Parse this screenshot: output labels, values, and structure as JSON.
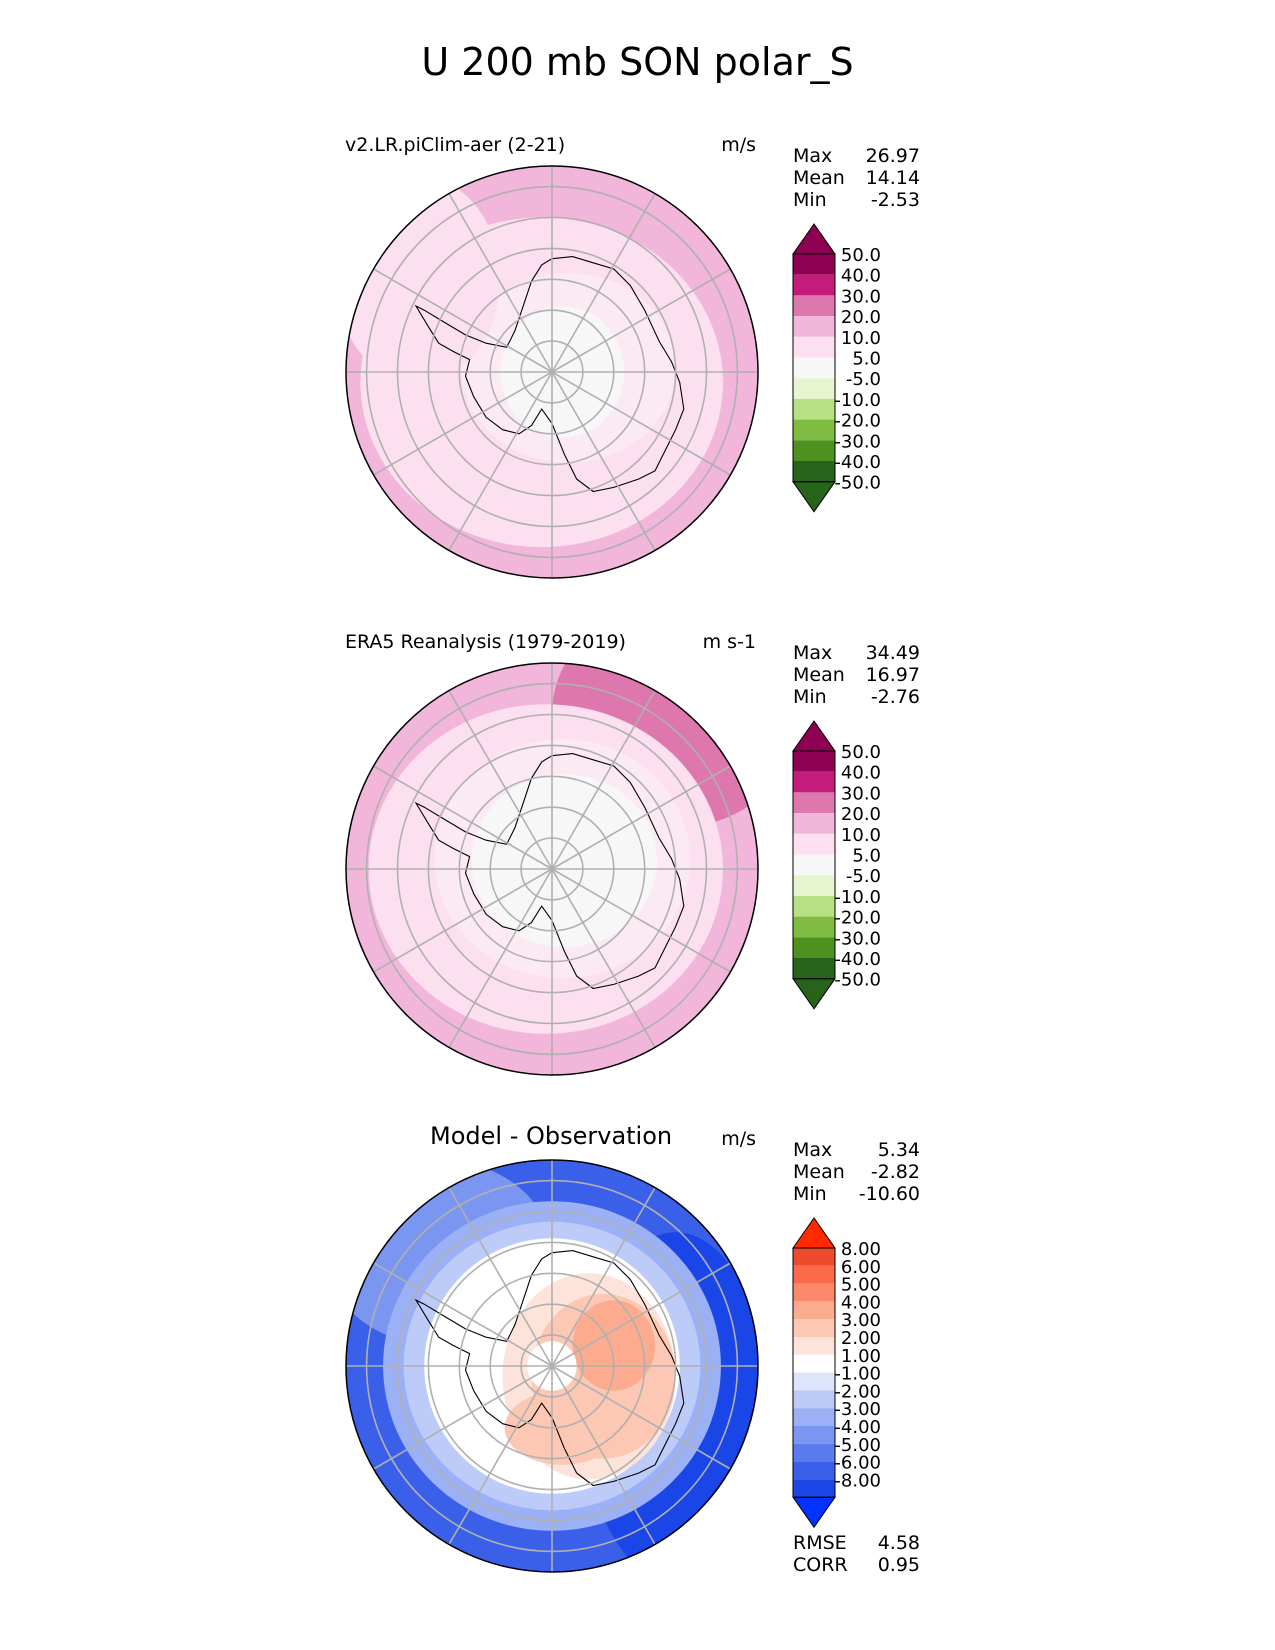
{
  "title": "U 200 mb SON polar_S",
  "panels": [
    {
      "title": "v2.LR.piClim-aer (2-21)",
      "units": "m/s",
      "stats": [
        {
          "label": "Max",
          "value": "26.97"
        },
        {
          "label": "Mean",
          "value": "14.14"
        },
        {
          "label": "Min",
          "value": "-2.53"
        }
      ],
      "colorbar": {
        "labels": [
          "50.0",
          "40.0",
          "30.0",
          "20.0",
          "10.0",
          "5.0",
          "-5.0",
          "-10.0",
          "-20.0",
          "-30.0",
          "-40.0",
          "-50.0"
        ],
        "colors": [
          "#8e0152",
          "#c51b7d",
          "#de77ae",
          "#f1b6da",
          "#fde0ef",
          "#f7f7f7",
          "#e6f5d0",
          "#b8e186",
          "#7fbc41",
          "#4d9221",
          "#276419"
        ],
        "extend_top": "#8e0152",
        "extend_bottom": "#276419"
      },
      "extra_stats": []
    },
    {
      "title": "ERA5 Reanalysis (1979-2019)",
      "units": "m s-1",
      "stats": [
        {
          "label": "Max",
          "value": "34.49"
        },
        {
          "label": "Mean",
          "value": "16.97"
        },
        {
          "label": "Min",
          "value": "-2.76"
        }
      ],
      "colorbar": {
        "labels": [
          "50.0",
          "40.0",
          "30.0",
          "20.0",
          "10.0",
          "5.0",
          "-5.0",
          "-10.0",
          "-20.0",
          "-30.0",
          "-40.0",
          "-50.0"
        ],
        "colors": [
          "#8e0152",
          "#c51b7d",
          "#de77ae",
          "#f1b6da",
          "#fde0ef",
          "#f7f7f7",
          "#e6f5d0",
          "#b8e186",
          "#7fbc41",
          "#4d9221",
          "#276419"
        ],
        "extend_top": "#8e0152",
        "extend_bottom": "#276419"
      },
      "extra_stats": []
    },
    {
      "title": "Model - Observation",
      "units": "m/s",
      "stats": [
        {
          "label": "Max",
          "value": "5.34"
        },
        {
          "label": "Mean",
          "value": "-2.82"
        },
        {
          "label": "Min",
          "value": "-10.60"
        }
      ],
      "colorbar": {
        "labels": [
          "8.00",
          "6.00",
          "5.00",
          "4.00",
          "3.00",
          "2.00",
          "1.00",
          "-1.00",
          "-2.00",
          "-3.00",
          "-4.00",
          "-5.00",
          "-6.00",
          "-8.00"
        ],
        "colors": [
          "#ee4a2c",
          "#fb6a4a",
          "#fc8a6a",
          "#fcab8f",
          "#fcc8b4",
          "#fee3da",
          "#ffffff",
          "#dde4fb",
          "#bccbf8",
          "#9cb1f5",
          "#7b96f1",
          "#5b7bee",
          "#3a60ea",
          "#1a46e7"
        ],
        "extend_top": "#ff2a00",
        "extend_bottom": "#0033ff"
      },
      "extra_stats": [
        {
          "label": "RMSE",
          "value": "4.58"
        },
        {
          "label": "CORR",
          "value": "0.95"
        }
      ]
    }
  ],
  "chart_data": [
    {
      "type": "heatmap",
      "title": "v2.LR.piClim-aer (2-21)",
      "units": "m/s",
      "projection": "south polar stereographic",
      "variable": "U 200 mb SON",
      "levels": [
        -50,
        -40,
        -30,
        -20,
        -10,
        -5,
        5,
        10,
        20,
        30,
        40,
        50
      ],
      "summary": {
        "max": 26.97,
        "mean": 14.14,
        "min": -2.53
      }
    },
    {
      "type": "heatmap",
      "title": "ERA5 Reanalysis (1979-2019)",
      "units": "m s-1",
      "projection": "south polar stereographic",
      "variable": "U 200 mb SON",
      "levels": [
        -50,
        -40,
        -30,
        -20,
        -10,
        -5,
        5,
        10,
        20,
        30,
        40,
        50
      ],
      "summary": {
        "max": 34.49,
        "mean": 16.97,
        "min": -2.76
      }
    },
    {
      "type": "heatmap",
      "title": "Model - Observation",
      "units": "m/s",
      "projection": "south polar stereographic",
      "variable": "U 200 mb SON difference",
      "levels": [
        -8,
        -6,
        -5,
        -4,
        -3,
        -2,
        -1,
        1,
        2,
        3,
        4,
        5,
        6,
        8
      ],
      "summary": {
        "max": 5.34,
        "mean": -2.82,
        "min": -10.6,
        "rmse": 4.58,
        "corr": 0.95
      }
    }
  ]
}
